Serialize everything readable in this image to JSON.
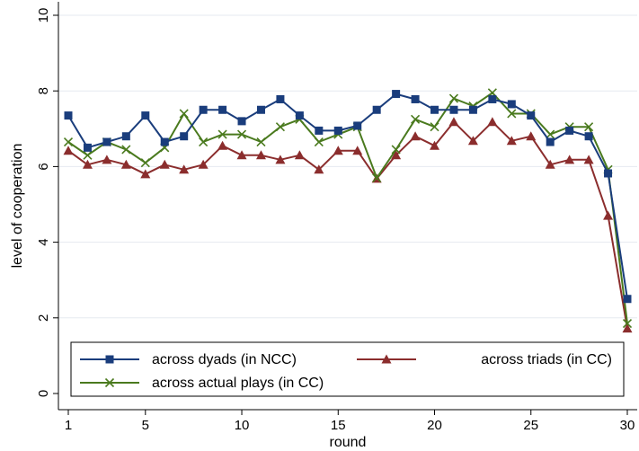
{
  "chart_data": {
    "type": "line",
    "xlabel": "round",
    "ylabel": "level of cooperation",
    "xlim": [
      1,
      30
    ],
    "ylim": [
      0,
      10
    ],
    "x_ticks": [
      1,
      5,
      10,
      15,
      20,
      25,
      30
    ],
    "y_ticks": [
      0,
      2,
      4,
      6,
      8,
      10
    ],
    "grid": "horizontal",
    "legend_position": "bottom",
    "x": [
      1,
      2,
      3,
      4,
      5,
      6,
      7,
      8,
      9,
      10,
      11,
      12,
      13,
      14,
      15,
      16,
      17,
      18,
      19,
      20,
      21,
      22,
      23,
      24,
      25,
      26,
      27,
      28,
      29,
      30
    ],
    "series": [
      {
        "name": "across dyads (in NCC)",
        "color": "#1a3d7c",
        "marker": "square",
        "values": [
          7.35,
          6.5,
          6.65,
          6.8,
          7.35,
          6.65,
          6.8,
          7.5,
          7.5,
          7.2,
          7.5,
          7.78,
          7.35,
          6.95,
          6.95,
          7.08,
          7.5,
          7.92,
          7.78,
          7.5,
          7.5,
          7.5,
          7.78,
          7.65,
          7.35,
          6.65,
          6.95,
          6.8,
          5.82,
          2.5
        ]
      },
      {
        "name": "across triads (in CC)",
        "color": "#8b2d2d",
        "marker": "triangle",
        "values": [
          6.42,
          6.05,
          6.18,
          6.05,
          5.8,
          6.05,
          5.92,
          6.05,
          6.55,
          6.3,
          6.3,
          6.18,
          6.3,
          5.92,
          6.42,
          6.42,
          5.68,
          6.3,
          6.8,
          6.55,
          7.18,
          6.68,
          7.18,
          6.68,
          6.8,
          6.05,
          6.18,
          6.18,
          4.7,
          1.72
        ]
      },
      {
        "name": "across actual plays (in CC)",
        "color": "#4a7a1e",
        "marker": "x",
        "values": [
          6.65,
          6.3,
          6.65,
          6.45,
          6.1,
          6.5,
          7.4,
          6.65,
          6.85,
          6.85,
          6.65,
          7.05,
          7.25,
          6.65,
          6.85,
          7.05,
          5.7,
          6.45,
          7.25,
          7.05,
          7.8,
          7.6,
          7.95,
          7.4,
          7.4,
          6.85,
          7.05,
          7.05,
          5.92,
          1.85
        ]
      }
    ]
  }
}
